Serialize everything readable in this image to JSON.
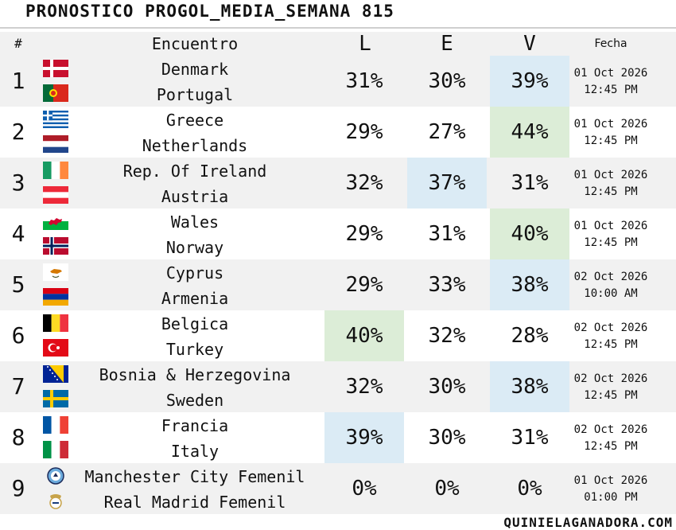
{
  "title": "PRONOSTICO PROGOL_MEDIA_SEMANA 815",
  "header": {
    "num": "#",
    "encuentro": "Encuentro",
    "l": "L",
    "e": "E",
    "v": "V",
    "fecha": "Fecha"
  },
  "rows": [
    {
      "num": "1",
      "home": "Denmark",
      "away": "Portugal",
      "home_flag": "denmark-flag",
      "away_flag": "portugal-flag",
      "l": "31%",
      "e": "30%",
      "v": "39%",
      "highlight": "v",
      "highlight_color": "#dbebf5",
      "date": "01 Oct 2026",
      "time": "12:45 PM"
    },
    {
      "num": "2",
      "home": "Greece",
      "away": "Netherlands",
      "home_flag": "greece-flag",
      "away_flag": "netherlands-flag",
      "l": "29%",
      "e": "27%",
      "v": "44%",
      "highlight": "v",
      "highlight_color": "#dcedd7",
      "date": "01 Oct 2026",
      "time": "12:45 PM"
    },
    {
      "num": "3",
      "home": "Rep. Of Ireland",
      "away": "Austria",
      "home_flag": "ireland-flag",
      "away_flag": "austria-flag",
      "l": "32%",
      "e": "37%",
      "v": "31%",
      "highlight": "e",
      "highlight_color": "#dbebf5",
      "date": "01 Oct 2026",
      "time": "12:45 PM"
    },
    {
      "num": "4",
      "home": "Wales",
      "away": "Norway",
      "home_flag": "wales-flag",
      "away_flag": "norway-flag",
      "l": "29%",
      "e": "31%",
      "v": "40%",
      "highlight": "v",
      "highlight_color": "#dcedd7",
      "date": "01 Oct 2026",
      "time": "12:45 PM"
    },
    {
      "num": "5",
      "home": "Cyprus",
      "away": "Armenia",
      "home_flag": "cyprus-flag",
      "away_flag": "armenia-flag",
      "l": "29%",
      "e": "33%",
      "v": "38%",
      "highlight": "v",
      "highlight_color": "#dbebf5",
      "date": "02 Oct 2026",
      "time": "10:00 AM"
    },
    {
      "num": "6",
      "home": "Belgica",
      "away": "Turkey",
      "home_flag": "belgium-flag",
      "away_flag": "turkey-flag",
      "l": "40%",
      "e": "32%",
      "v": "28%",
      "highlight": "l",
      "highlight_color": "#dcedd7",
      "date": "02 Oct 2026",
      "time": "12:45 PM"
    },
    {
      "num": "7",
      "home": "Bosnia & Herzegovina",
      "away": "Sweden",
      "home_flag": "bosnia-flag",
      "away_flag": "sweden-flag",
      "l": "32%",
      "e": "30%",
      "v": "38%",
      "highlight": "v",
      "highlight_color": "#dbebf5",
      "date": "02 Oct 2026",
      "time": "12:45 PM"
    },
    {
      "num": "8",
      "home": "Francia",
      "away": "Italy",
      "home_flag": "france-flag",
      "away_flag": "italy-flag",
      "l": "39%",
      "e": "30%",
      "v": "31%",
      "highlight": "l",
      "highlight_color": "#dbebf5",
      "date": "02 Oct 2026",
      "time": "12:45 PM"
    },
    {
      "num": "9",
      "home": "Manchester City Femenil",
      "away": "Real Madrid Femenil",
      "home_flag": "man-city-crest-icon",
      "away_flag": "real-madrid-crest-icon",
      "l": "0%",
      "e": "0%",
      "v": "0%",
      "highlight": "",
      "highlight_color": "",
      "date": "01 Oct 2026",
      "time": "01:00 PM"
    }
  ],
  "footer": "QUINIELAGANADORA.COM"
}
